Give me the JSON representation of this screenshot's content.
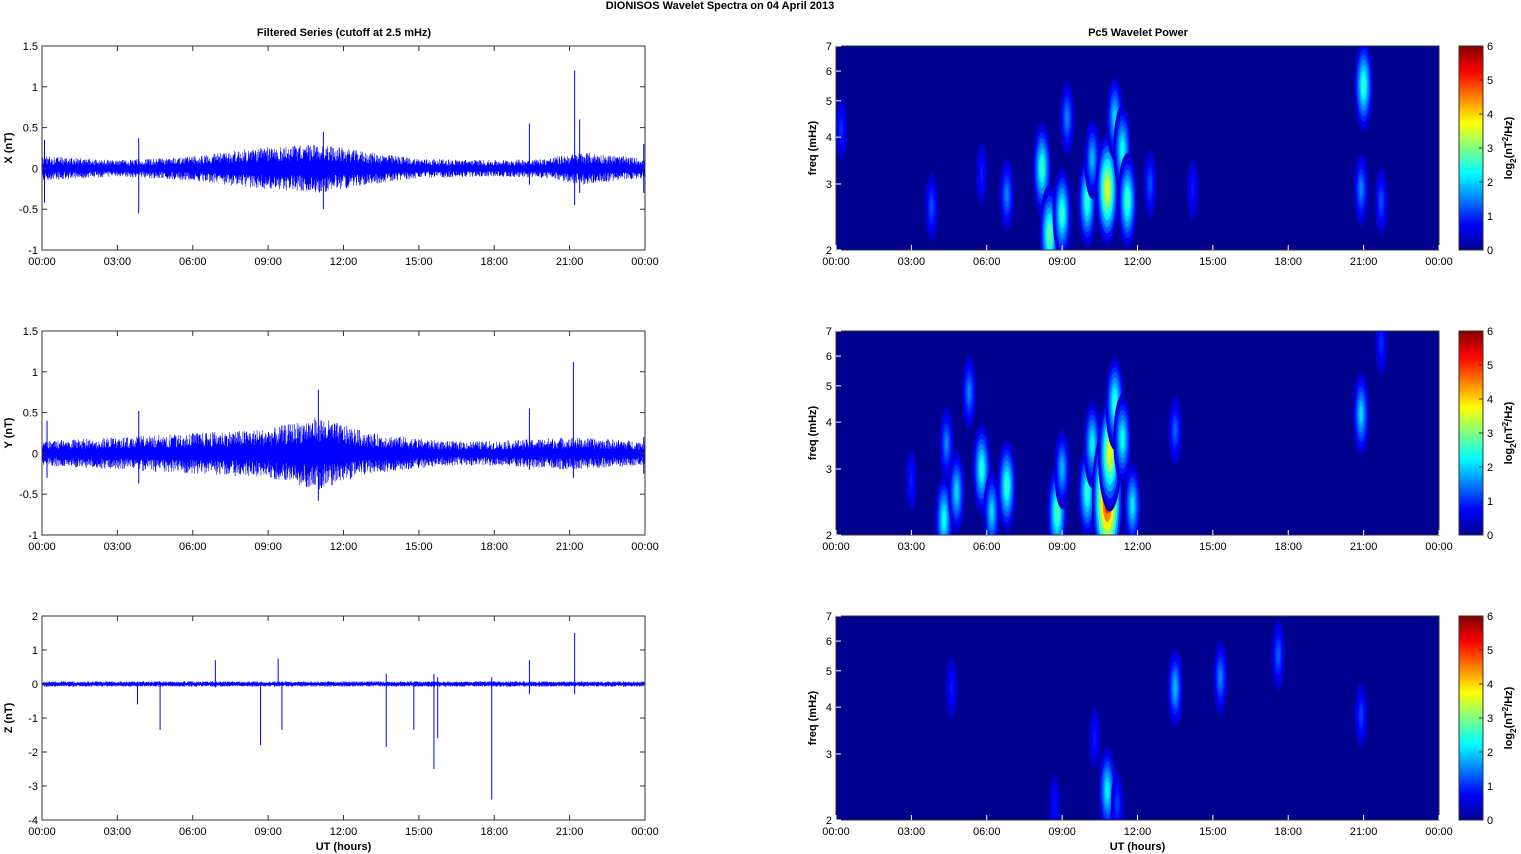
{
  "figure": {
    "title": "DIONISOS Wavelet Spectra on 04 April     2013",
    "left_title": "Filtered Series (cutoff at 2.5 mHz)",
    "right_title": "Pc5 Wavelet Power",
    "xlabel": "UT (hours)"
  },
  "colors": {
    "trace": "#0000ff",
    "background": "#00008f",
    "colormap": [
      "#00008f",
      "#0000ff",
      "#00ffff",
      "#ffff00",
      "#ff0000",
      "#800000"
    ]
  },
  "chart_data": [
    {
      "type": "line",
      "title": "Filtered Series (cutoff at 2.5 mHz)",
      "ylabel": "X (nT)",
      "xlabel": "",
      "xlim": [
        "00:00",
        "00:00"
      ],
      "ylim": [
        -1,
        1.5
      ],
      "xticks": [
        "00:00",
        "03:00",
        "06:00",
        "09:00",
        "12:00",
        "15:00",
        "18:00",
        "21:00",
        "00:00"
      ],
      "yticks": [
        "-1",
        "-0.5",
        "0",
        "0.5",
        "1",
        "1.5"
      ],
      "series": [
        {
          "values_note_hours": [
            0,
            24
          ],
          "spikes": [
            {
              "t": 0.1,
              "lo": -0.42,
              "hi": 0.35
            },
            {
              "t": 3.85,
              "lo": -0.55,
              "hi": 0.37
            },
            {
              "t": 11.2,
              "lo": -0.5,
              "hi": 0.45
            },
            {
              "t": 19.4,
              "lo": -0.2,
              "hi": 0.55
            },
            {
              "t": 21.2,
              "lo": -0.45,
              "hi": 1.2
            },
            {
              "t": 21.4,
              "lo": -0.3,
              "hi": 0.6
            },
            {
              "t": 23.95,
              "lo": -0.3,
              "hi": 0.3
            }
          ],
          "envelope": [
            [
              0,
              0.15
            ],
            [
              3,
              0.1
            ],
            [
              6,
              0.15
            ],
            [
              8.5,
              0.25
            ],
            [
              11,
              0.3
            ],
            [
              13,
              0.2
            ],
            [
              15,
              0.12
            ],
            [
              18,
              0.1
            ],
            [
              20,
              0.12
            ],
            [
              21.5,
              0.2
            ],
            [
              24,
              0.12
            ]
          ]
        }
      ]
    },
    {
      "type": "line",
      "ylabel": "Y (nT)",
      "xlabel": "",
      "ylim": [
        -1,
        1.5
      ],
      "xticks": [
        "00:00",
        "03:00",
        "06:00",
        "09:00",
        "12:00",
        "15:00",
        "18:00",
        "21:00",
        "00:00"
      ],
      "yticks": [
        "-1",
        "-0.5",
        "0",
        "0.5",
        "1",
        "1.5"
      ],
      "series": [
        {
          "spikes": [
            {
              "t": 0.2,
              "lo": -0.3,
              "hi": 0.4
            },
            {
              "t": 3.85,
              "lo": -0.37,
              "hi": 0.52
            },
            {
              "t": 11.0,
              "lo": -0.58,
              "hi": 0.78
            },
            {
              "t": 19.4,
              "lo": -0.2,
              "hi": 0.55
            },
            {
              "t": 21.15,
              "lo": -0.3,
              "hi": 1.12
            },
            {
              "t": 23.95,
              "lo": -0.25,
              "hi": 0.2
            }
          ],
          "envelope": [
            [
              0,
              0.15
            ],
            [
              3,
              0.2
            ],
            [
              6,
              0.25
            ],
            [
              9,
              0.3
            ],
            [
              11,
              0.45
            ],
            [
              13,
              0.25
            ],
            [
              16,
              0.15
            ],
            [
              18,
              0.15
            ],
            [
              21,
              0.2
            ],
            [
              24,
              0.15
            ]
          ]
        }
      ]
    },
    {
      "type": "line",
      "ylabel": "Z (nT)",
      "xlabel": "UT (hours)",
      "ylim": [
        -4,
        2
      ],
      "xticks": [
        "00:00",
        "03:00",
        "06:00",
        "09:00",
        "12:00",
        "15:00",
        "18:00",
        "21:00",
        "00:00"
      ],
      "yticks": [
        "-4",
        "-3",
        "-2",
        "-1",
        "0",
        "1",
        "2"
      ],
      "series": [
        {
          "spikes": [
            {
              "t": 3.8,
              "lo": -0.6,
              "hi": 0.05
            },
            {
              "t": 4.7,
              "lo": -1.35,
              "hi": 0.05
            },
            {
              "t": 6.9,
              "lo": -0.1,
              "hi": 0.7
            },
            {
              "t": 8.7,
              "lo": -1.8,
              "hi": 0.05
            },
            {
              "t": 9.4,
              "lo": -0.05,
              "hi": 0.75
            },
            {
              "t": 9.55,
              "lo": -1.35,
              "hi": 0.05
            },
            {
              "t": 13.7,
              "lo": -1.85,
              "hi": 0.3
            },
            {
              "t": 14.8,
              "lo": -1.35,
              "hi": 0.05
            },
            {
              "t": 15.6,
              "lo": -2.5,
              "hi": 0.3
            },
            {
              "t": 15.75,
              "lo": -1.6,
              "hi": 0.2
            },
            {
              "t": 17.9,
              "lo": -3.4,
              "hi": 0.2
            },
            {
              "t": 19.4,
              "lo": -0.3,
              "hi": 0.7
            },
            {
              "t": 21.2,
              "lo": -0.3,
              "hi": 1.5
            }
          ],
          "envelope": [
            [
              0,
              0.08
            ],
            [
              24,
              0.08
            ]
          ]
        }
      ]
    },
    {
      "type": "heatmap",
      "title": "Pc5 Wavelet Power",
      "ylabel": "freq (mHz)",
      "xlabel": "",
      "yscale": "log",
      "ylim": [
        2,
        7
      ],
      "clim": [
        0,
        6
      ],
      "colorbar_label": "log2(nT2/Hz)",
      "xticks": [
        "00:00",
        "03:00",
        "06:00",
        "09:00",
        "12:00",
        "15:00",
        "18:00",
        "21:00",
        "00:00"
      ],
      "yticks": [
        "2",
        "3",
        "4",
        "5",
        "6",
        "7"
      ],
      "cticks": [
        "0",
        "1",
        "2",
        "3",
        "4",
        "5",
        "6"
      ],
      "blobs": [
        {
          "t": 0.2,
          "f": 4.2,
          "v": 1.0
        },
        {
          "t": 3.8,
          "f": 2.6,
          "v": 1.2
        },
        {
          "t": 5.8,
          "f": 3.2,
          "v": 0.9
        },
        {
          "t": 6.8,
          "f": 2.8,
          "v": 1.5
        },
        {
          "t": 8.2,
          "f": 3.3,
          "v": 2.5
        },
        {
          "t": 8.5,
          "f": 2.2,
          "v": 2.8
        },
        {
          "t": 9.0,
          "f": 2.5,
          "v": 2.5
        },
        {
          "t": 9.2,
          "f": 4.5,
          "v": 1.5
        },
        {
          "t": 10.0,
          "f": 2.7,
          "v": 2.5
        },
        {
          "t": 10.2,
          "f": 3.5,
          "v": 1.8
        },
        {
          "t": 10.8,
          "f": 2.9,
          "v": 3.5
        },
        {
          "t": 11.1,
          "f": 4.5,
          "v": 2.0
        },
        {
          "t": 11.4,
          "f": 3.7,
          "v": 2.3
        },
        {
          "t": 11.6,
          "f": 2.7,
          "v": 2.6
        },
        {
          "t": 12.5,
          "f": 3.0,
          "v": 1.2
        },
        {
          "t": 14.2,
          "f": 2.9,
          "v": 0.9
        },
        {
          "t": 20.9,
          "f": 2.9,
          "v": 1.5
        },
        {
          "t": 21.0,
          "f": 5.5,
          "v": 2.5
        },
        {
          "t": 21.7,
          "f": 2.7,
          "v": 1.2
        }
      ]
    },
    {
      "type": "heatmap",
      "ylabel": "freq (mHz)",
      "xlabel": "",
      "yscale": "log",
      "ylim": [
        2,
        7
      ],
      "clim": [
        0,
        6
      ],
      "colorbar_label": "log2(nT2/Hz)",
      "xticks": [
        "00:00",
        "03:00",
        "06:00",
        "09:00",
        "12:00",
        "15:00",
        "18:00",
        "21:00",
        "00:00"
      ],
      "yticks": [
        "2",
        "3",
        "4",
        "5",
        "6",
        "7"
      ],
      "cticks": [
        "0",
        "1",
        "2",
        "3",
        "4",
        "5",
        "6"
      ],
      "blobs": [
        {
          "t": 3.0,
          "f": 2.8,
          "v": 0.9
        },
        {
          "t": 4.3,
          "f": 2.2,
          "v": 2.3
        },
        {
          "t": 4.4,
          "f": 3.5,
          "v": 1.5
        },
        {
          "t": 4.8,
          "f": 2.6,
          "v": 2.0
        },
        {
          "t": 5.3,
          "f": 4.8,
          "v": 1.5
        },
        {
          "t": 5.8,
          "f": 3.0,
          "v": 2.4
        },
        {
          "t": 6.2,
          "f": 2.3,
          "v": 2.0
        },
        {
          "t": 6.8,
          "f": 2.7,
          "v": 2.5
        },
        {
          "t": 8.8,
          "f": 2.3,
          "v": 2.7
        },
        {
          "t": 9.0,
          "f": 3.0,
          "v": 1.8
        },
        {
          "t": 10.0,
          "f": 2.6,
          "v": 2.5
        },
        {
          "t": 10.2,
          "f": 3.5,
          "v": 2.2
        },
        {
          "t": 10.8,
          "f": 2.5,
          "v": 5.2
        },
        {
          "t": 10.9,
          "f": 3.3,
          "v": 3.6
        },
        {
          "t": 11.1,
          "f": 4.5,
          "v": 2.5
        },
        {
          "t": 11.4,
          "f": 3.6,
          "v": 2.3
        },
        {
          "t": 11.8,
          "f": 2.4,
          "v": 2.1
        },
        {
          "t": 13.5,
          "f": 3.8,
          "v": 1.3
        },
        {
          "t": 20.9,
          "f": 4.2,
          "v": 2.0
        },
        {
          "t": 21.7,
          "f": 6.5,
          "v": 1.0
        }
      ]
    },
    {
      "type": "heatmap",
      "ylabel": "freq (mHz)",
      "xlabel": "UT (hours)",
      "yscale": "log",
      "ylim": [
        2,
        7
      ],
      "clim": [
        0,
        6
      ],
      "colorbar_label": "log2(nT2/Hz)",
      "xticks": [
        "00:00",
        "03:00",
        "06:00",
        "09:00",
        "12:00",
        "15:00",
        "18:00",
        "21:00",
        "00:00"
      ],
      "yticks": [
        "2",
        "3",
        "4",
        "5",
        "6",
        "7"
      ],
      "cticks": [
        "0",
        "1",
        "2",
        "3",
        "4",
        "5",
        "6"
      ],
      "blobs": [
        {
          "t": 4.6,
          "f": 4.5,
          "v": 0.9
        },
        {
          "t": 8.7,
          "f": 2.2,
          "v": 0.8
        },
        {
          "t": 10.3,
          "f": 3.3,
          "v": 0.9
        },
        {
          "t": 10.8,
          "f": 2.4,
          "v": 2.2
        },
        {
          "t": 11.2,
          "f": 2.2,
          "v": 1.1
        },
        {
          "t": 13.5,
          "f": 4.5,
          "v": 1.8
        },
        {
          "t": 15.3,
          "f": 4.8,
          "v": 1.5
        },
        {
          "t": 17.6,
          "f": 5.5,
          "v": 1.3
        },
        {
          "t": 20.9,
          "f": 3.8,
          "v": 1.1
        }
      ]
    }
  ]
}
